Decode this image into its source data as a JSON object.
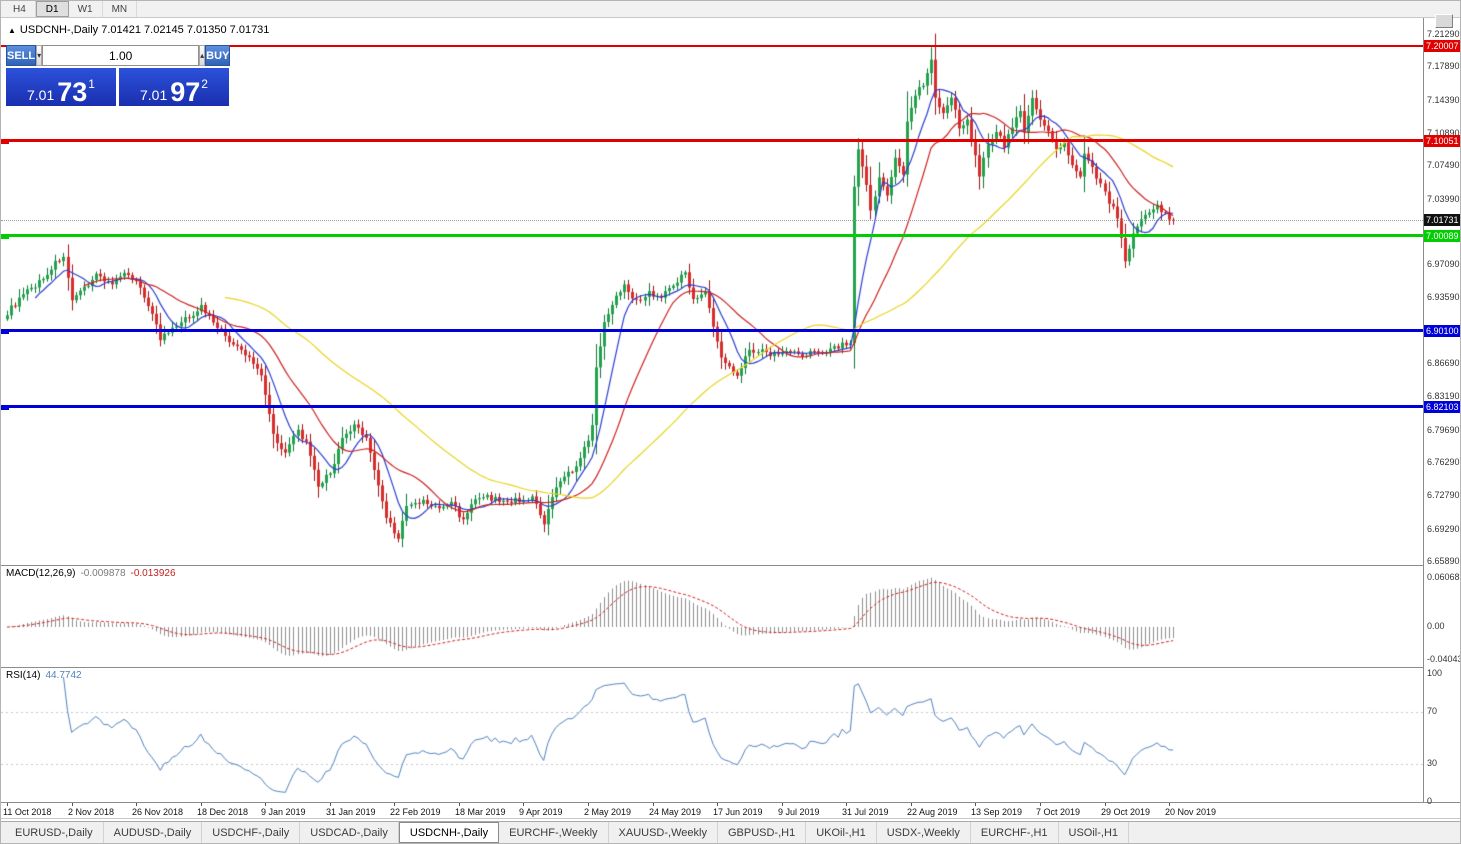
{
  "toolbar": {
    "periods": [
      "H4",
      "D1",
      "W1",
      "MN"
    ],
    "active_period": "D1"
  },
  "icons": {
    "collapse": "▲",
    "volume_down": "▾",
    "volume_up": "▴"
  },
  "chart": {
    "title": "USDCNH-,Daily 7.01421 7.02145 7.01350 7.01731"
  },
  "trade_panel": {
    "sell_label": "SELL",
    "buy_label": "BUY",
    "volume": "1.00",
    "sell_price": {
      "prefix": "7.01",
      "big": "73",
      "sup": "1"
    },
    "buy_price": {
      "prefix": "7.01",
      "big": "97",
      "sup": "2"
    }
  },
  "price_axis_labels": [
    "7.21290",
    "7.17890",
    "7.14390",
    "7.10890",
    "7.07490",
    "7.03990",
    "6.97090",
    "6.93590",
    "6.86690",
    "6.83190",
    "6.79690",
    "6.76290",
    "6.72790",
    "6.69290",
    "6.65890"
  ],
  "current_price": {
    "label": "7.01731",
    "price": 7.01731,
    "color": "#111111"
  },
  "macd": {
    "name": "MACD(12,26,9)",
    "value_main": "-0.009878",
    "value_signal": "-0.013926",
    "axis_labels": [
      "0.060687",
      "0.00",
      "-0.040432"
    ],
    "axis_values": [
      0.060687,
      0,
      -0.040432
    ],
    "hist_color": "#8f8f8f",
    "signal_color": "#cc2222"
  },
  "rsi": {
    "name": "RSI(14)",
    "value": "44.7742",
    "axis_labels": [
      "100",
      "70",
      "30",
      "0"
    ],
    "axis_values": [
      100,
      70,
      30,
      0
    ],
    "levels": [
      70,
      30
    ],
    "line_color": "#4f81bd"
  },
  "date_axis": [
    "11 Oct 2018",
    "2 Nov 2018",
    "26 Nov 2018",
    "18 Dec 2018",
    "9 Jan 2019",
    "31 Jan 2019",
    "22 Feb 2019",
    "18 Mar 2019",
    "9 Apr 2019",
    "2 May 2019",
    "24 May 2019",
    "17 Jun 2019",
    "9 Jul 2019",
    "31 Jul 2019",
    "22 Aug 2019",
    "13 Sep 2019",
    "7 Oct 2019",
    "29 Oct 2019",
    "20 Nov 2019"
  ],
  "tabs": {
    "items": [
      "EURUSD-,Daily",
      "AUDUSD-,Daily",
      "USDCHF-,Daily",
      "USDCAD-,Daily",
      "USDCNH-,Daily",
      "EURCHF-,Weekly",
      "XAUUSD-,Weekly",
      "GBPUSD-,H1",
      "UKOil-,H1",
      "USDX-,Weekly",
      "EURCHF-,H1",
      "USOil-,H1"
    ],
    "active_index": 4
  },
  "chart_data": {
    "type": "candlestick",
    "symbol": "USDCNH",
    "timeframe": "Daily",
    "ohlc": {
      "open": 7.01421,
      "high": 7.02145,
      "low": 7.0135,
      "close": 7.01731
    },
    "price_range": {
      "top": 7.2297,
      "bottom": 6.6556
    },
    "candle_count": 290,
    "close_anchors": [
      [
        0,
        6.92
      ],
      [
        4,
        6.938
      ],
      [
        9,
        6.956
      ],
      [
        12,
        6.972
      ],
      [
        14,
        6.98
      ],
      [
        16,
        6.93
      ],
      [
        19,
        6.946
      ],
      [
        22,
        6.96
      ],
      [
        26,
        6.95
      ],
      [
        30,
        6.962
      ],
      [
        33,
        6.946
      ],
      [
        36,
        6.92
      ],
      [
        38,
        6.892
      ],
      [
        41,
        6.902
      ],
      [
        45,
        6.916
      ],
      [
        48,
        6.926
      ],
      [
        52,
        6.906
      ],
      [
        55,
        6.89
      ],
      [
        60,
        6.872
      ],
      [
        63,
        6.856
      ],
      [
        66,
        6.792
      ],
      [
        69,
        6.772
      ],
      [
        72,
        6.796
      ],
      [
        74,
        6.782
      ],
      [
        77,
        6.737
      ],
      [
        80,
        6.752
      ],
      [
        83,
        6.786
      ],
      [
        86,
        6.8
      ],
      [
        89,
        6.79
      ],
      [
        92,
        6.737
      ],
      [
        94,
        6.706
      ],
      [
        97,
        6.682
      ],
      [
        99,
        6.716
      ],
      [
        103,
        6.721
      ],
      [
        107,
        6.713
      ],
      [
        110,
        6.721
      ],
      [
        113,
        6.701
      ],
      [
        115,
        6.72
      ],
      [
        119,
        6.726
      ],
      [
        123,
        6.721
      ],
      [
        127,
        6.723
      ],
      [
        130,
        6.726
      ],
      [
        133,
        6.696
      ],
      [
        135,
        6.726
      ],
      [
        138,
        6.75
      ],
      [
        141,
        6.756
      ],
      [
        143,
        6.776
      ],
      [
        145,
        6.8
      ],
      [
        146,
        6.86
      ],
      [
        148,
        6.912
      ],
      [
        151,
        6.936
      ],
      [
        153,
        6.951
      ],
      [
        156,
        6.931
      ],
      [
        159,
        6.941
      ],
      [
        162,
        6.936
      ],
      [
        165,
        6.951
      ],
      [
        168,
        6.961
      ],
      [
        170,
        6.936
      ],
      [
        173,
        6.941
      ],
      [
        175,
        6.906
      ],
      [
        177,
        6.871
      ],
      [
        181,
        6.856
      ],
      [
        184,
        6.881
      ],
      [
        187,
        6.879
      ],
      [
        190,
        6.876
      ],
      [
        194,
        6.881
      ],
      [
        197,
        6.873
      ],
      [
        200,
        6.879
      ],
      [
        203,
        6.881
      ],
      [
        207,
        6.886
      ],
      [
        209,
        6.888
      ],
      [
        210,
        7.05
      ],
      [
        211,
        7.09
      ],
      [
        213,
        7.052
      ],
      [
        214,
        7.026
      ],
      [
        216,
        7.061
      ],
      [
        218,
        7.046
      ],
      [
        220,
        7.081
      ],
      [
        222,
        7.066
      ],
      [
        223,
        7.121
      ],
      [
        225,
        7.151
      ],
      [
        227,
        7.161
      ],
      [
        229,
        7.186
      ],
      [
        230,
        7.146
      ],
      [
        232,
        7.131
      ],
      [
        234,
        7.146
      ],
      [
        236,
        7.116
      ],
      [
        238,
        7.121
      ],
      [
        240,
        7.086
      ],
      [
        241,
        7.066
      ],
      [
        243,
        7.096
      ],
      [
        245,
        7.111
      ],
      [
        247,
        7.096
      ],
      [
        249,
        7.116
      ],
      [
        251,
        7.131
      ],
      [
        252,
        7.111
      ],
      [
        254,
        7.146
      ],
      [
        256,
        7.121
      ],
      [
        258,
        7.111
      ],
      [
        260,
        7.091
      ],
      [
        262,
        7.096
      ],
      [
        264,
        7.076
      ],
      [
        266,
        7.061
      ],
      [
        267,
        7.086
      ],
      [
        269,
        7.071
      ],
      [
        271,
        7.056
      ],
      [
        273,
        7.036
      ],
      [
        275,
        7.021
      ],
      [
        277,
        6.976
      ],
      [
        279,
        7.001
      ],
      [
        281,
        7.016
      ],
      [
        283,
        7.026
      ],
      [
        285,
        7.031
      ],
      [
        287,
        7.026
      ],
      [
        288,
        7.016
      ],
      [
        289,
        7.01731
      ]
    ],
    "mas": [
      {
        "period": 8,
        "color": "#2b3fd0"
      },
      {
        "period": 20,
        "color": "#cc2222"
      },
      {
        "period": 55,
        "color": "#e8d322"
      }
    ],
    "colors": {
      "candle_up": "#23a24d",
      "candle_up_dark": "#0f7a36",
      "candle_down": "#d92c2c",
      "candle_down_dark": "#a01616"
    },
    "hlines": [
      {
        "price": 7.20007,
        "label": "7.20007",
        "color": "#e00000",
        "width": 2,
        "edge_marker": false
      },
      {
        "price": 7.10051,
        "label": "7.10051",
        "color": "#e00000",
        "width": 3,
        "edge_marker": true
      },
      {
        "price": 7.00089,
        "label": "7.00089",
        "color": "#00ce00",
        "width": 3,
        "edge_marker": true
      },
      {
        "price": 6.901,
        "label": "6.90100",
        "color": "#0000d8",
        "width": 3,
        "edge_marker": true
      },
      {
        "price": 6.82103,
        "label": "6.82103",
        "color": "#0000d8",
        "width": 3,
        "edge_marker": true
      }
    ]
  }
}
